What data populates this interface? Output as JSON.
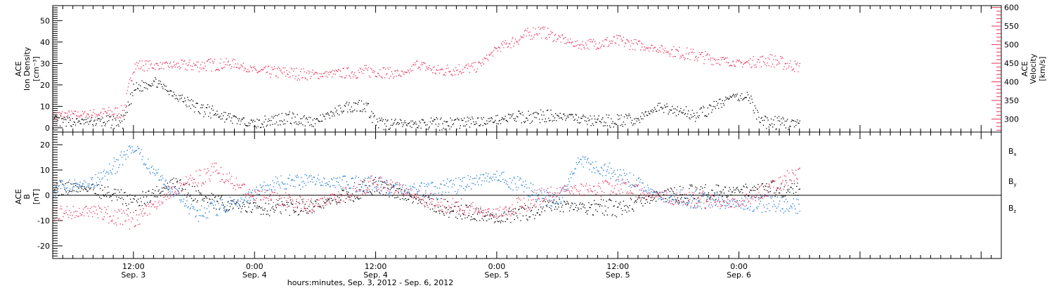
{
  "xaxis": {
    "title": "hours:minutes, Sep.  3, 2012 - Sep.  6, 2012",
    "range": [
      "2012-09-03T04:00",
      "2012-09-07T02:00"
    ],
    "ticks": [
      {
        "time": "2012-09-03T12:00",
        "line1": "12:00",
        "line2": "Sep. 3"
      },
      {
        "time": "2012-09-04T00:00",
        "line1": "0:00",
        "line2": "Sep. 4"
      },
      {
        "time": "2012-09-04T12:00",
        "line1": "12:00",
        "line2": "Sep. 4"
      },
      {
        "time": "2012-09-05T00:00",
        "line1": "0:00",
        "line2": "Sep. 5"
      },
      {
        "time": "2012-09-05T12:00",
        "line1": "12:00",
        "line2": "Sep. 5"
      },
      {
        "time": "2012-09-06T00:00",
        "line1": "0:00",
        "line2": "Sep. 6"
      }
    ]
  },
  "chart_data": [
    {
      "type": "scatter",
      "panel": "top",
      "ylabel_left": [
        "ACE",
        "Ion Density",
        "[cm⁻³]"
      ],
      "ylabel_right": [
        "ACE",
        "Velocity",
        "[km/s]"
      ],
      "ylim_left": [
        -2,
        57
      ],
      "ylim_right": [
        265,
        605
      ],
      "yticks_left": [
        0,
        10,
        20,
        30,
        40,
        50
      ],
      "yticks_right": [
        300,
        350,
        400,
        450,
        500,
        550,
        600
      ],
      "colors": {
        "density": "#000000",
        "velocity": "#e8325a"
      },
      "series": [
        {
          "axis": "left",
          "x": [
            "2012-09-03T04:00",
            "2012-09-03T08:00",
            "2012-09-03T11:00",
            "2012-09-03T12:00",
            "2012-09-03T14:00",
            "2012-09-03T16:00",
            "2012-09-03T18:00",
            "2012-09-03T22:00",
            "2012-09-04T00:00",
            "2012-09-04T03:00",
            "2012-09-04T06:00",
            "2012-09-04T09:00",
            "2012-09-04T11:00",
            "2012-09-04T12:00",
            "2012-09-04T18:00",
            "2012-09-04T22:00",
            "2012-09-05T02:00",
            "2012-09-05T06:00",
            "2012-09-05T10:00",
            "2012-09-05T14:00",
            "2012-09-05T16:00",
            "2012-09-05T20:00",
            "2012-09-05T23:00",
            "2012-09-06T01:00",
            "2012-09-06T02:00",
            "2012-09-06T06:00"
          ],
          "values": [
            3,
            3,
            3,
            18,
            22,
            16,
            10,
            4,
            2,
            5,
            3,
            10,
            11,
            2,
            2,
            3,
            5,
            6,
            3,
            4,
            10,
            6,
            14,
            15,
            3,
            2
          ]
        },
        {
          "axis": "right",
          "x": [
            "2012-09-03T04:00",
            "2012-09-03T08:00",
            "2012-09-03T11:00",
            "2012-09-03T12:00",
            "2012-09-03T18:00",
            "2012-09-03T22:00",
            "2012-09-04T00:00",
            "2012-09-04T06:00",
            "2012-09-04T12:00",
            "2012-09-04T15:00",
            "2012-09-04T16:00",
            "2012-09-04T18:00",
            "2012-09-04T22:00",
            "2012-09-05T00:00",
            "2012-09-05T04:00",
            "2012-09-05T08:00",
            "2012-09-05T12:00",
            "2012-09-05T16:00",
            "2012-09-05T20:00",
            "2012-09-06T00:00",
            "2012-09-06T03:00",
            "2012-09-06T06:00"
          ],
          "values": [
            310,
            315,
            320,
            445,
            445,
            450,
            430,
            420,
            430,
            420,
            450,
            430,
            440,
            490,
            540,
            500,
            510,
            490,
            470,
            450,
            460,
            440
          ]
        }
      ]
    },
    {
      "type": "scatter",
      "panel": "bottom",
      "ylabel_left": [
        "ACE",
        "B",
        "[nT]"
      ],
      "ylim": [
        -25,
        25
      ],
      "yticks": [
        -20,
        -10,
        0,
        10,
        20
      ],
      "series_labels": {
        "bx": "B",
        "bx_sub": "x",
        "by": "B",
        "by_sub": "y",
        "bz": "B",
        "bz_sub": "z"
      },
      "colors": {
        "bx": "#000000",
        "by": "#1a78d6",
        "bz": "#e8325a"
      },
      "series": [
        {
          "key": "bx",
          "x": [
            "2012-09-03T04:00",
            "2012-09-03T08:00",
            "2012-09-03T12:00",
            "2012-09-03T16:00",
            "2012-09-03T20:00",
            "2012-09-04T00:00",
            "2012-09-04T06:00",
            "2012-09-04T12:00",
            "2012-09-04T18:00",
            "2012-09-05T00:00",
            "2012-09-05T06:00",
            "2012-09-05T12:00",
            "2012-09-05T16:00",
            "2012-09-06T00:00",
            "2012-09-06T06:00"
          ],
          "values": [
            3,
            3,
            -3,
            5,
            -3,
            -5,
            -4,
            4,
            -4,
            -9,
            -4,
            -5,
            0,
            2,
            3
          ]
        },
        {
          "key": "by",
          "x": [
            "2012-09-03T04:00",
            "2012-09-03T08:00",
            "2012-09-03T12:00",
            "2012-09-03T14:00",
            "2012-09-03T18:00",
            "2012-09-03T22:00",
            "2012-09-04T02:00",
            "2012-09-04T06:00",
            "2012-09-04T12:00",
            "2012-09-04T18:00",
            "2012-09-05T00:00",
            "2012-09-05T06:00",
            "2012-09-05T08:00",
            "2012-09-05T12:00",
            "2012-09-05T16:00",
            "2012-09-06T00:00",
            "2012-09-06T06:00"
          ],
          "values": [
            3,
            5,
            18,
            10,
            -7,
            -3,
            5,
            6,
            4,
            2,
            8,
            -3,
            14,
            9,
            0,
            -3,
            -4
          ]
        },
        {
          "key": "bz",
          "x": [
            "2012-09-03T04:00",
            "2012-09-03T08:00",
            "2012-09-03T12:00",
            "2012-09-03T16:00",
            "2012-09-03T20:00",
            "2012-09-04T00:00",
            "2012-09-04T06:00",
            "2012-09-04T12:00",
            "2012-09-04T18:00",
            "2012-09-05T00:00",
            "2012-09-05T06:00",
            "2012-09-05T12:00",
            "2012-09-05T16:00",
            "2012-09-06T00:00",
            "2012-09-06T06:00"
          ],
          "values": [
            -7,
            -6,
            -10,
            2,
            10,
            0,
            -4,
            6,
            -3,
            -7,
            2,
            3,
            0,
            -3,
            9
          ]
        }
      ]
    }
  ]
}
